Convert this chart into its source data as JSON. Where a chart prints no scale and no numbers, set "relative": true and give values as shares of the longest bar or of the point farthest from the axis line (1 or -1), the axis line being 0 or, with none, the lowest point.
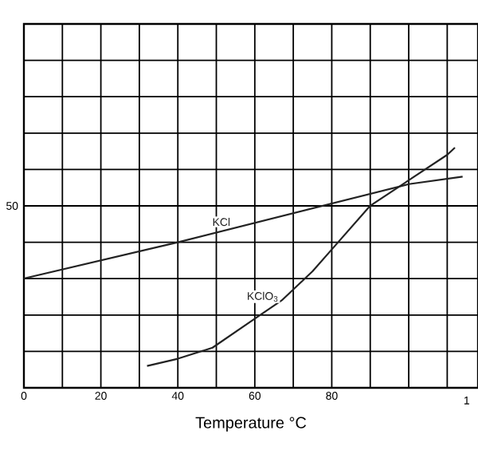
{
  "chart_data": {
    "type": "line",
    "relative": true,
    "xlabel": "Temperature °C",
    "xlim": [
      0,
      118
    ],
    "xticks": [
      0,
      {
        "value": 10,
        "label": null
      },
      20,
      {
        "value": 30,
        "label": null
      },
      40,
      {
        "value": 50,
        "label": null
      },
      60,
      {
        "value": 70,
        "label": null
      },
      80,
      {
        "value": 90,
        "label": null
      },
      {
        "value": 100,
        "label": null
      },
      {
        "value": 110,
        "label": null
      }
    ],
    "annotations": [
      "50",
      "1"
    ],
    "grid": true,
    "marker": "none",
    "line_style": "solid",
    "series": [
      {
        "name": "KCl",
        "color": "#222222",
        "x": [
          0,
          40,
          70,
          100,
          114
        ],
        "values": [
          0.455,
          0.606,
          0.727,
          0.848,
          0.879
        ]
      },
      {
        "name": "KClO$_{3}$",
        "color": "#222222",
        "x": [
          32,
          40,
          49,
          60,
          67,
          75,
          80,
          90,
          100,
          110,
          112
        ],
        "values": [
          0.091,
          0.121,
          0.167,
          0.288,
          0.364,
          0.485,
          0.576,
          0.758,
          0.864,
          0.97,
          1
        ]
      }
    ]
  }
}
